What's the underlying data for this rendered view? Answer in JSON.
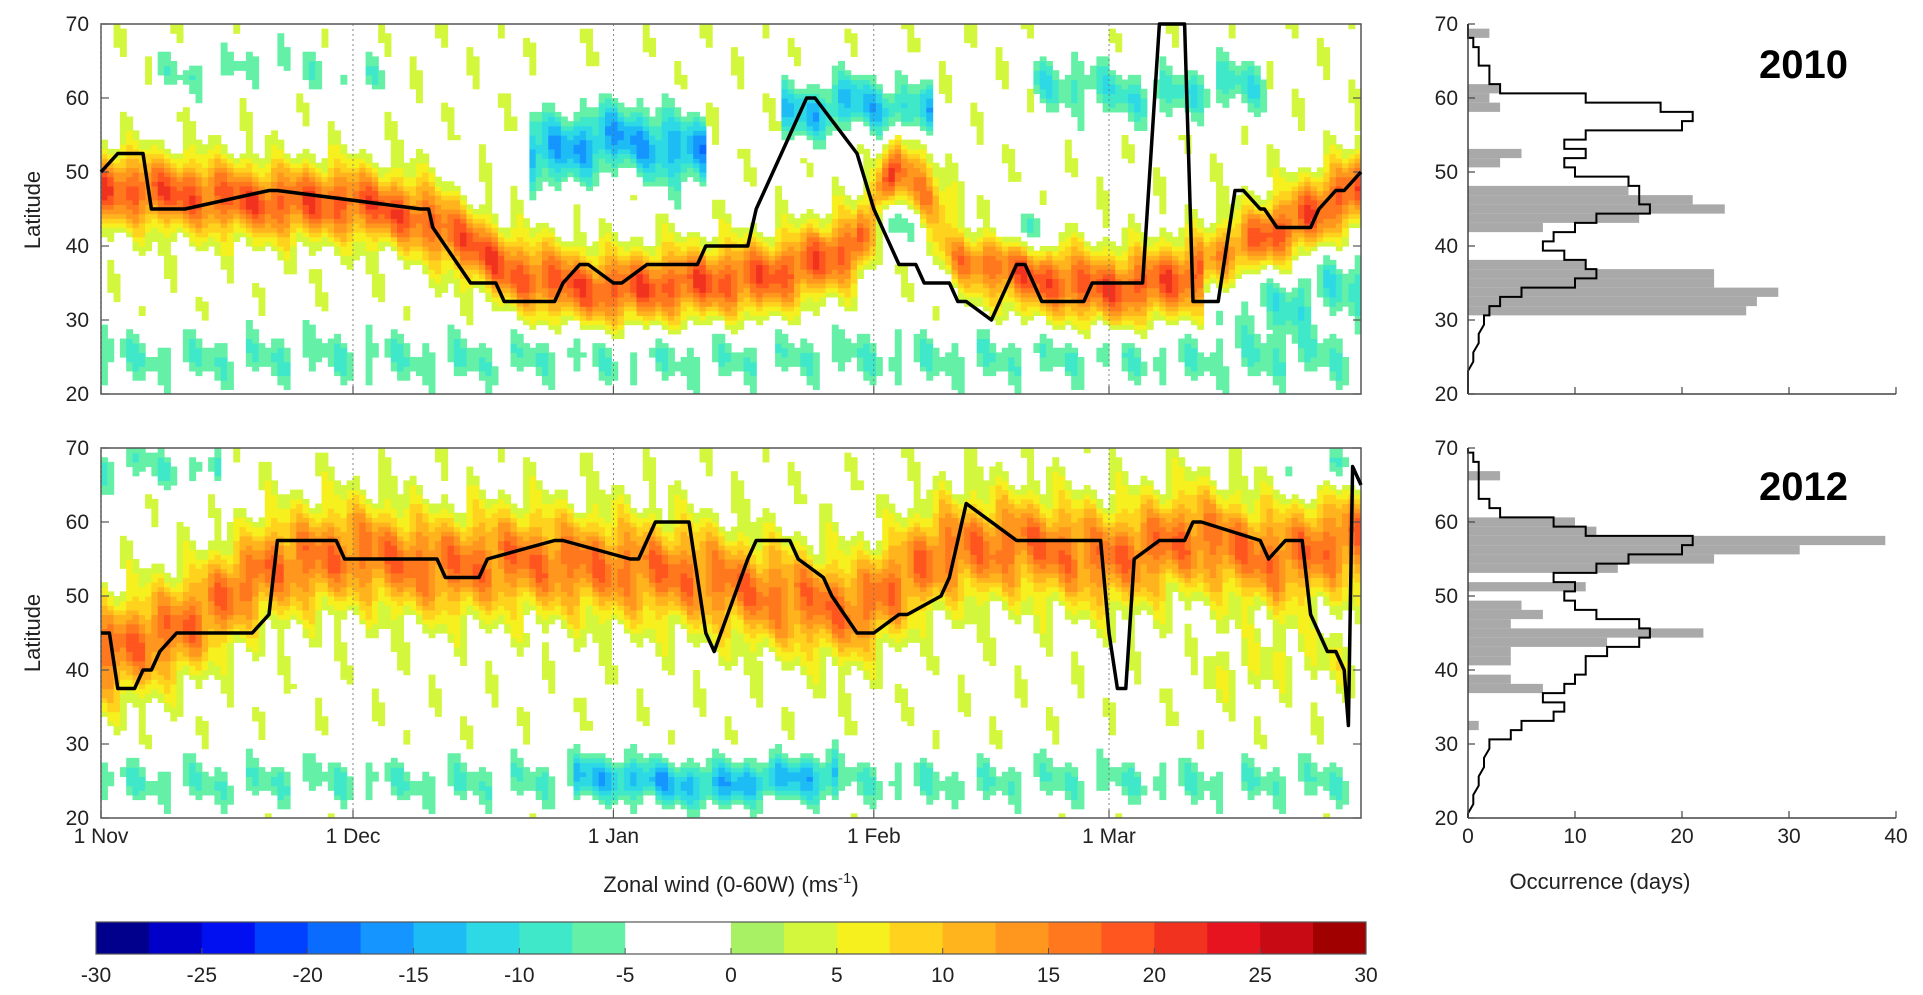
{
  "chart_data": [
    {
      "type": "heatmap",
      "panel": "2010 latitude-time section",
      "ylabel": "Latitude",
      "ylim": [
        20,
        70
      ],
      "yticks": [
        "20",
        "30",
        "40",
        "50",
        "60",
        "70"
      ],
      "x_ticks": [
        {
          "day": 0,
          "label": "1 Nov"
        },
        {
          "day": 30,
          "label": "1 Dec"
        },
        {
          "day": 61,
          "label": "1 Jan"
        },
        {
          "day": 92,
          "label": "1 Feb"
        },
        {
          "day": 120,
          "label": "1 Mar"
        }
      ],
      "xlim_days": [
        0,
        150
      ],
      "bands": [
        {
          "t": [
            0,
            20,
            30,
            38,
            50,
            60,
            70,
            80,
            90,
            95,
            102,
            110,
            120,
            130,
            140,
            150
          ],
          "c": [
            48,
            46,
            46,
            44,
            36,
            34,
            35,
            36,
            40,
            52,
            40,
            36,
            34,
            36,
            42,
            48
          ],
          "h": 5,
          "a": 18
        },
        {
          "t": [
            0,
            150
          ],
          "c": [
            25,
            25
          ],
          "h": 4,
          "a": -6
        },
        {
          "t": [
            55,
            62,
            68
          ],
          "c": [
            53,
            55,
            53
          ],
          "h": 5,
          "a": -14
        },
        {
          "t": [
            85,
            90,
            95
          ],
          "c": [
            58,
            60,
            58
          ],
          "h": 4,
          "a": -12
        },
        {
          "t": [
            95,
            102,
            110
          ],
          "c": [
            44,
            42,
            42
          ],
          "h": 3,
          "a": -8
        },
        {
          "t": [
            115,
            125,
            135
          ],
          "c": [
            62,
            60,
            62
          ],
          "h": 4,
          "a": -8
        },
        {
          "t": [
            10,
            20,
            30
          ],
          "c": [
            63,
            65,
            63
          ],
          "h": 3,
          "a": -5
        },
        {
          "t": [
            135,
            141,
            146
          ],
          "c": [
            35,
            32,
            35
          ],
          "h": 5,
          "a": -8
        }
      ],
      "jet_series": {
        "name": "",
        "day": [
          0,
          2,
          5,
          6,
          10,
          20,
          21,
          38,
          39,
          39.5,
          44,
          47,
          48,
          54,
          55,
          57,
          58,
          61,
          62,
          65,
          66,
          71,
          72,
          77,
          78,
          79,
          82,
          84,
          85,
          90,
          92,
          95,
          97,
          98,
          101,
          102,
          103,
          106,
          107,
          108,
          109,
          110,
          111,
          112,
          113,
          115,
          117,
          118,
          119,
          120,
          121,
          122,
          124,
          126,
          129,
          130,
          132,
          133,
          135,
          136,
          138,
          138.5,
          140,
          142,
          144,
          145,
          147,
          148,
          150
        ],
        "latitude": [
          50,
          52.5,
          52.5,
          45,
          45,
          47.5,
          47.5,
          45,
          45,
          42.5,
          35,
          35,
          32.5,
          32.5,
          35,
          37.5,
          37.5,
          35,
          35,
          37.5,
          37.5,
          37.5,
          40,
          40,
          45,
          47.5,
          55,
          60,
          60,
          52.5,
          45,
          37.5,
          37.5,
          35,
          35,
          32.5,
          32.5,
          30,
          32.5,
          35,
          37.5,
          37.5,
          35,
          32.5,
          32.5,
          32.5,
          32.5,
          35,
          35,
          35,
          35,
          35,
          35,
          70,
          70,
          32.5,
          32.5,
          32.5,
          47.5,
          47.5,
          45,
          45,
          42.5,
          42.5,
          42.5,
          45,
          47.5,
          47.5,
          50
        ]
      }
    },
    {
      "type": "heatmap",
      "panel": "2012 latitude-time section",
      "ylabel": "Latitude",
      "ylim": [
        20,
        70
      ],
      "yticks": [
        "20",
        "30",
        "40",
        "50",
        "60",
        "70"
      ],
      "x_ticks": [
        {
          "day": 0,
          "label": "1 Nov"
        },
        {
          "day": 30,
          "label": "1 Dec"
        },
        {
          "day": 61,
          "label": "1 Jan"
        },
        {
          "day": 92,
          "label": "1 Feb"
        },
        {
          "day": 120,
          "label": "1 Mar"
        }
      ],
      "xlim_days": [
        0,
        150
      ],
      "bands": [
        {
          "t": [
            0,
            10,
            20,
            30,
            40,
            50,
            60,
            70,
            80,
            90,
            100,
            110,
            120,
            130,
            140,
            150
          ],
          "c": [
            42,
            46,
            54,
            56,
            54,
            55,
            54,
            53,
            50,
            48,
            56,
            57,
            55,
            58,
            55,
            58
          ],
          "h": 7,
          "a": 16
        },
        {
          "t": [
            0,
            150
          ],
          "c": [
            25,
            25
          ],
          "h": 3.5,
          "a": -6
        },
        {
          "t": [
            60,
            72,
            84
          ],
          "c": [
            26,
            24,
            26
          ],
          "h": 3,
          "a": -7
        },
        {
          "t": [
            135,
            145,
            150
          ],
          "c": [
            40,
            42,
            40
          ],
          "h": 4,
          "a": 4
        },
        {
          "t": [
            0,
            5,
            10
          ],
          "c": [
            67,
            68,
            67
          ],
          "h": 3,
          "a": -6
        },
        {
          "t": [
            145,
            148,
            150
          ],
          "c": [
            67,
            68,
            67
          ],
          "h": 3,
          "a": -6
        }
      ],
      "jet_series": {
        "name": "",
        "day": [
          0,
          1,
          2,
          4,
          5,
          6,
          7,
          9,
          18,
          20,
          21,
          28,
          29,
          40,
          41,
          45,
          46,
          54,
          55,
          63,
          64,
          65,
          66,
          70,
          71,
          72,
          73,
          77,
          78,
          82,
          83,
          86,
          87,
          90,
          91,
          92,
          95,
          96,
          100,
          101,
          102,
          103,
          109,
          110,
          111,
          112,
          118,
          119,
          120,
          121,
          122,
          123,
          126,
          127,
          129,
          130,
          131,
          138,
          139,
          141,
          143,
          144,
          145,
          146,
          147,
          148,
          148.5,
          149,
          150
        ],
        "latitude": [
          45,
          45,
          37.5,
          37.5,
          40,
          40,
          42.5,
          45,
          45,
          47.5,
          57.5,
          57.5,
          55,
          55,
          52.5,
          52.5,
          55,
          57.5,
          57.5,
          55,
          55,
          57.5,
          60,
          60,
          52.5,
          45,
          42.5,
          55,
          57.5,
          57.5,
          55,
          52.5,
          50,
          45,
          45,
          45,
          47.5,
          47.5,
          50,
          52.5,
          57.5,
          62.5,
          57.5,
          57.5,
          57.5,
          57.5,
          57.5,
          57.5,
          45,
          37.5,
          37.5,
          55,
          57.5,
          57.5,
          57.5,
          60,
          60,
          57.5,
          55,
          57.5,
          57.5,
          47.5,
          45,
          42.5,
          42.5,
          40,
          32.5,
          67.5,
          65
        ]
      }
    },
    {
      "type": "bar",
      "panel": "2010 occurrence histogram",
      "annotation": "2010",
      "xlabel": "Occurrence (days)",
      "xlim": [
        0,
        40
      ],
      "ylim": [
        20,
        70
      ],
      "bins_latitude": [
        68.75,
        61.25,
        60,
        58.75,
        52.5,
        51.25,
        47.5,
        46.25,
        45,
        43.75,
        42.5,
        37.5,
        36.25,
        35,
        33.75,
        32.5,
        31.25
      ],
      "values": [
        2,
        3,
        2,
        3,
        5,
        3,
        15,
        21,
        24,
        16,
        7,
        11,
        23,
        23,
        29,
        27,
        26
      ],
      "outline_latitude": [
        20,
        22.5,
        25,
        27.5,
        30,
        31.25,
        32.5,
        33.75,
        35,
        36.25,
        37.5,
        38.75,
        40,
        41.25,
        42.5,
        43.75,
        45,
        46.25,
        47.5,
        48.75,
        50,
        51.25,
        52.5,
        53.75,
        55,
        56.25,
        57.5,
        58.75,
        60,
        61.25,
        62.5,
        63.75,
        65,
        66.25,
        67.5,
        68.75,
        70
      ],
      "outline_values": [
        0,
        0,
        0.5,
        1,
        1.5,
        2,
        3,
        5,
        10,
        12,
        11,
        9,
        7,
        8,
        10,
        12,
        17,
        16,
        16,
        15,
        10,
        9,
        11,
        9,
        11,
        20,
        21,
        18,
        11,
        3,
        2,
        2,
        1,
        1,
        0.5,
        0,
        0
      ]
    },
    {
      "type": "bar",
      "panel": "2012 occurrence histogram",
      "annotation": "2012",
      "xlabel": "Occurrence (days)",
      "xlim": [
        0,
        40
      ],
      "ylim": [
        20,
        70
      ],
      "xticks": [
        "0",
        "10",
        "20",
        "30",
        "40"
      ],
      "bins_latitude": [
        66.25,
        60,
        58.75,
        57.5,
        56.25,
        55,
        53.75,
        51.25,
        48.75,
        47.5,
        46.25,
        45,
        43.75,
        42.5,
        41.25,
        38.75,
        37.5,
        32.5
      ],
      "values": [
        3,
        10,
        12,
        39,
        31,
        23,
        14,
        11,
        5,
        7,
        4,
        22,
        13,
        4,
        4,
        4,
        7,
        1
      ],
      "outline_latitude": [
        20,
        22.5,
        25,
        27.5,
        30,
        31.25,
        32.5,
        33.75,
        35,
        36.25,
        37.5,
        38.75,
        40,
        41.25,
        42.5,
        43.75,
        45,
        46.25,
        47.5,
        48.75,
        50,
        51.25,
        52.5,
        53.75,
        55,
        56.25,
        57.5,
        58.75,
        60,
        61.25,
        62.5,
        63.75,
        65,
        66.25,
        67.5,
        68.75,
        70
      ],
      "outline_values": [
        0,
        0.5,
        1,
        1.5,
        2,
        4,
        5,
        8,
        9,
        7,
        9,
        10,
        11,
        11,
        13,
        16,
        17,
        16,
        12,
        10,
        9,
        10,
        8,
        12,
        15,
        20,
        21,
        11,
        8,
        3,
        2,
        1,
        1,
        1,
        1,
        0.5,
        0
      ]
    },
    {
      "type": "colorbar",
      "label": "Zonal wind (0-60W) (ms",
      "label_superscript": "-1",
      "label_tail": ")",
      "range": [
        -30,
        30
      ],
      "step": 2.5,
      "white_range": [
        -2.5,
        2.5
      ],
      "tick_labels": [
        "-30",
        "-25",
        "-20",
        "-15",
        "-10",
        "-5",
        "0",
        "5",
        "10",
        "15",
        "20",
        "25",
        "30"
      ],
      "colors": [
        "#00008c",
        "#0000c8",
        "#0010f0",
        "#0040ff",
        "#0a6cff",
        "#1495ff",
        "#1ebcf5",
        "#2ed9e6",
        "#3fe8c9",
        "#64f0a6",
        "#ffffff",
        "#ffffff",
        "#a8f064",
        "#d2f73c",
        "#f5f01e",
        "#ffd21e",
        "#ffb41e",
        "#ff961e",
        "#ff781e",
        "#ff551e",
        "#f0321e",
        "#e6141e",
        "#c80a14",
        "#a00000"
      ]
    }
  ]
}
